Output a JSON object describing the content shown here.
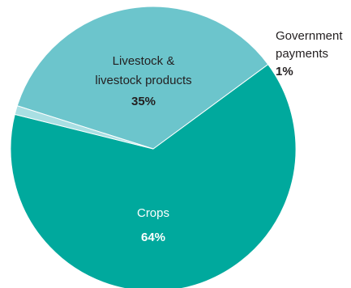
{
  "chart_data": {
    "type": "pie",
    "title": "",
    "slices": [
      {
        "label_lines": [
          "Crops"
        ],
        "value": 64,
        "value_label": "64%",
        "color": "#00a99d"
      },
      {
        "label_lines": [
          "Livestock &",
          "livestock products"
        ],
        "value": 35,
        "value_label": "35%",
        "color": "#6cc5cc"
      },
      {
        "label_lines": [
          "Government",
          "payments"
        ],
        "value": 1,
        "value_label": "1%",
        "color": "#a9dfe3"
      }
    ],
    "label_colors": {
      "inside_light": "#ffffff",
      "inside_dark": "#231f20",
      "outside": "#231f20"
    }
  }
}
